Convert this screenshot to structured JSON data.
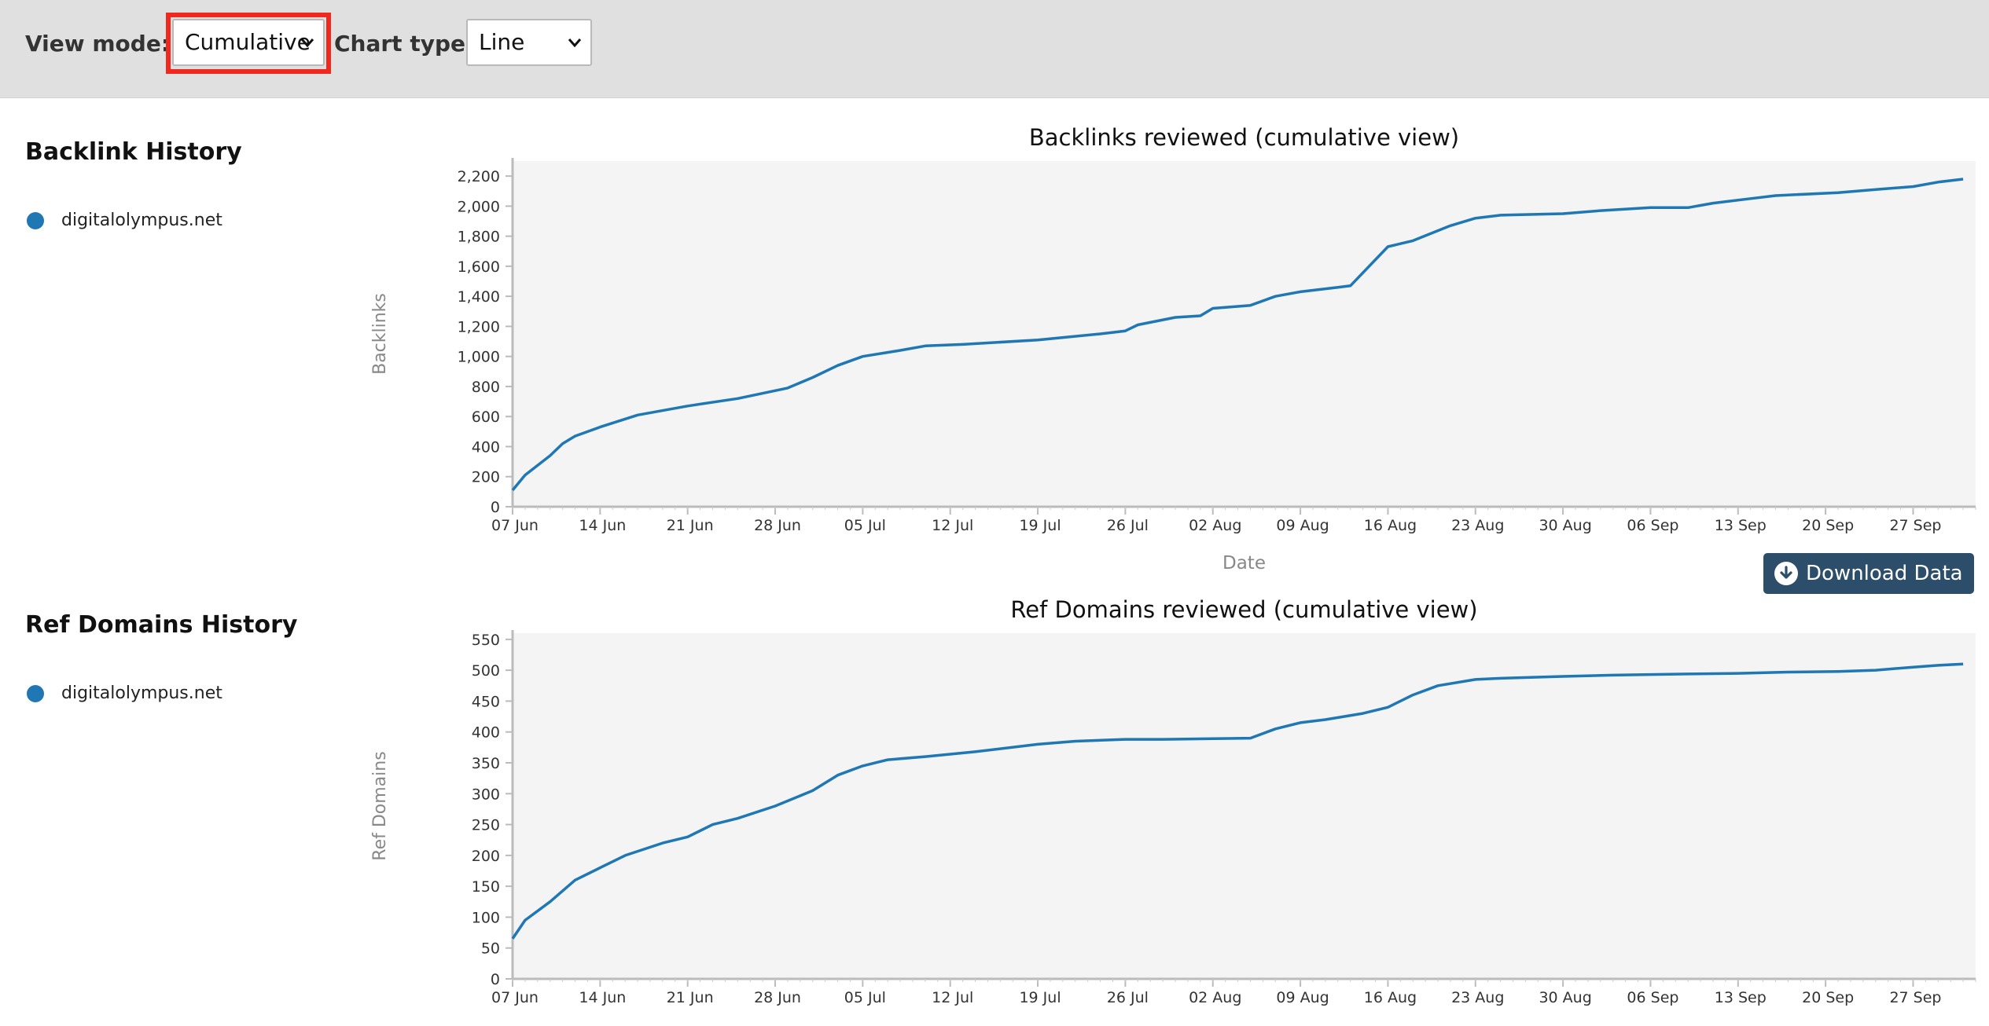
{
  "toolbar": {
    "view_mode_label": "View mode:",
    "view_mode_value": "Cumulative",
    "chart_type_label": "Chart type:",
    "chart_type_value": "Line"
  },
  "sections": {
    "backlinks": {
      "title": "Backlink History",
      "legend": "digitalolympus.net"
    },
    "refdomains": {
      "title": "Ref Domains History",
      "legend": "digitalolympus.net"
    }
  },
  "download_label": "Download Data",
  "colors": {
    "series": "#1f77b4",
    "plot_bg": "#f4f4f4",
    "button": "#2c4e6a",
    "highlight": "#f0281e"
  },
  "chart_data": [
    {
      "type": "line",
      "title": "Backlinks reviewed (cumulative view)",
      "xlabel": "Date",
      "ylabel": "Backlinks",
      "ylim": [
        0,
        2300
      ],
      "yticks": [
        0,
        200,
        400,
        600,
        800,
        1000,
        1200,
        1400,
        1600,
        1800,
        2000,
        2200
      ],
      "xticks": [
        "07 Jun",
        "14 Jun",
        "21 Jun",
        "28 Jun",
        "05 Jul",
        "12 Jul",
        "19 Jul",
        "26 Jul",
        "02 Aug",
        "09 Aug",
        "16 Aug",
        "23 Aug",
        "30 Aug",
        "06 Sep",
        "13 Sep",
        "20 Sep",
        "27 Sep"
      ],
      "grid": false,
      "series": [
        {
          "name": "digitalolympus.net",
          "x": [
            "2023-06-07",
            "2023-06-08",
            "2023-06-10",
            "2023-06-11",
            "2023-06-12",
            "2023-06-14",
            "2023-06-17",
            "2023-06-21",
            "2023-06-25",
            "2023-06-29",
            "2023-07-01",
            "2023-07-03",
            "2023-07-05",
            "2023-07-08",
            "2023-07-10",
            "2023-07-13",
            "2023-07-19",
            "2023-07-24",
            "2023-07-26",
            "2023-07-27",
            "2023-07-30",
            "2023-08-01",
            "2023-08-02",
            "2023-08-05",
            "2023-08-07",
            "2023-08-09",
            "2023-08-12",
            "2023-08-13",
            "2023-08-16",
            "2023-08-17",
            "2023-08-18",
            "2023-08-21",
            "2023-08-23",
            "2023-08-25",
            "2023-08-30",
            "2023-09-02",
            "2023-09-06",
            "2023-09-09",
            "2023-09-11",
            "2023-09-14",
            "2023-09-16",
            "2023-09-21",
            "2023-09-24",
            "2023-09-27",
            "2023-09-29",
            "2023-10-01"
          ],
          "values": [
            110,
            210,
            340,
            420,
            470,
            530,
            610,
            670,
            720,
            790,
            860,
            940,
            1000,
            1040,
            1070,
            1080,
            1110,
            1150,
            1170,
            1210,
            1260,
            1270,
            1320,
            1340,
            1400,
            1430,
            1460,
            1470,
            1730,
            1750,
            1770,
            1870,
            1920,
            1940,
            1950,
            1970,
            1990,
            1990,
            2020,
            2050,
            2070,
            2090,
            2110,
            2130,
            2160,
            2180
          ]
        }
      ]
    },
    {
      "type": "line",
      "title": "Ref Domains reviewed (cumulative view)",
      "xlabel": "",
      "ylabel": "Ref Domains",
      "ylim": [
        0,
        560
      ],
      "yticks": [
        0,
        50,
        100,
        150,
        200,
        250,
        300,
        350,
        400,
        450,
        500,
        550
      ],
      "xticks": [
        "07 Jun",
        "14 Jun",
        "21 Jun",
        "28 Jun",
        "05 Jul",
        "12 Jul",
        "19 Jul",
        "26 Jul",
        "02 Aug",
        "09 Aug",
        "16 Aug",
        "23 Aug",
        "30 Aug",
        "06 Sep",
        "13 Sep",
        "20 Sep",
        "27 Sep"
      ],
      "grid": false,
      "series": [
        {
          "name": "digitalolympus.net",
          "x": [
            "2023-06-07",
            "2023-06-08",
            "2023-06-10",
            "2023-06-12",
            "2023-06-14",
            "2023-06-16",
            "2023-06-19",
            "2023-06-21",
            "2023-06-23",
            "2023-06-25",
            "2023-06-28",
            "2023-07-01",
            "2023-07-03",
            "2023-07-05",
            "2023-07-07",
            "2023-07-10",
            "2023-07-14",
            "2023-07-19",
            "2023-07-22",
            "2023-07-26",
            "2023-07-29",
            "2023-08-05",
            "2023-08-07",
            "2023-08-09",
            "2023-08-11",
            "2023-08-14",
            "2023-08-16",
            "2023-08-18",
            "2023-08-20",
            "2023-08-23",
            "2023-08-25",
            "2023-08-30",
            "2023-09-03",
            "2023-09-06",
            "2023-09-09",
            "2023-09-13",
            "2023-09-17",
            "2023-09-21",
            "2023-09-24",
            "2023-09-27",
            "2023-09-29",
            "2023-10-01"
          ],
          "values": [
            65,
            95,
            125,
            160,
            180,
            200,
            220,
            230,
            250,
            260,
            280,
            305,
            330,
            345,
            355,
            360,
            368,
            380,
            385,
            388,
            388,
            390,
            405,
            415,
            420,
            430,
            440,
            460,
            475,
            485,
            487,
            490,
            492,
            493,
            494,
            495,
            497,
            498,
            500,
            505,
            508,
            510
          ]
        }
      ]
    }
  ]
}
